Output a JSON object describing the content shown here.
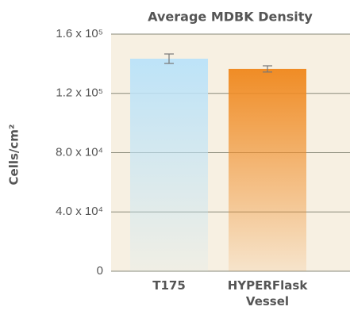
{
  "chart_data": {
    "type": "bar",
    "title": "Average MDBK Density",
    "y_label": "Cells/cm²",
    "categories": [
      "T175",
      "HYPERFlask Vessel"
    ],
    "values": [
      143400,
      136500
    ],
    "errors": [
      3200,
      2100
    ],
    "colors": [
      "#bde3f8",
      "#f08c25"
    ],
    "ylim": [
      0,
      160000
    ],
    "yticks": [
      0,
      {
        "value": 40000,
        "label": "4.0 x 10⁴"
      },
      {
        "value": 80000,
        "label": "8.0 x 10⁴"
      },
      {
        "value": 120000,
        "label": "1.2 x 10⁵"
      },
      {
        "value": 160000,
        "label": "1.6 x 10⁵"
      }
    ],
    "grid": true
  }
}
